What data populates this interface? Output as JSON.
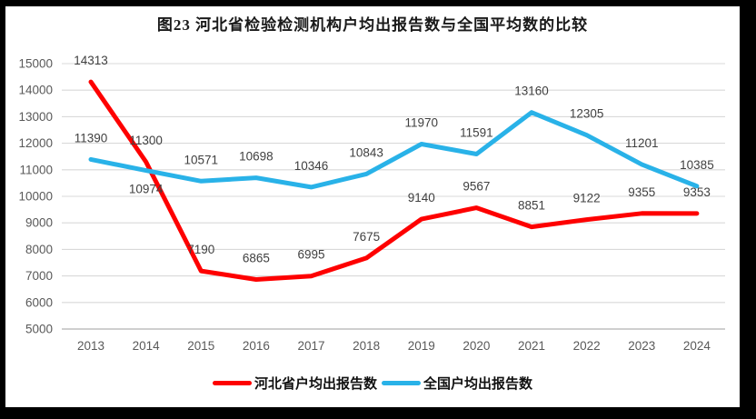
{
  "frame": {
    "border_color": "#000000",
    "background": "#ffffff"
  },
  "chart_data": {
    "type": "line",
    "title": "图23  河北省检验检测机构户均出报告数与全国平均数的比较",
    "categories": [
      "2013",
      "2014",
      "2015",
      "2016",
      "2017",
      "2018",
      "2019",
      "2020",
      "2021",
      "2022",
      "2023",
      "2024"
    ],
    "series": [
      {
        "name": "河北省户均出报告数",
        "color": "#fe0000",
        "values": [
          14313,
          11300,
          7190,
          6865,
          6995,
          7675,
          9140,
          9567,
          8851,
          9122,
          9355,
          9353
        ]
      },
      {
        "name": "全国户均出报告数",
        "color": "#29b2e8",
        "values": [
          11390,
          10974,
          10571,
          10698,
          10346,
          10843,
          11970,
          11591,
          13160,
          12305,
          11201,
          10385
        ]
      }
    ],
    "ylim": [
      5000,
      15000
    ],
    "ytick_step": 1000,
    "ytick_labels": [
      "15000",
      "14000",
      "13000",
      "12000",
      "11000",
      "10000",
      "9000",
      "8000",
      "7000",
      "6000",
      "5000"
    ],
    "grid": "horizontal",
    "legend_position": "bottom",
    "data_labels": "all-points",
    "labels_below_points": [
      {
        "series": 1,
        "index": 1
      }
    ],
    "colors": {
      "gridline": "#d9d9d9",
      "axis_line": "#bfbfbf",
      "tick_text": "#595959",
      "data_label_text": "#404040"
    }
  }
}
